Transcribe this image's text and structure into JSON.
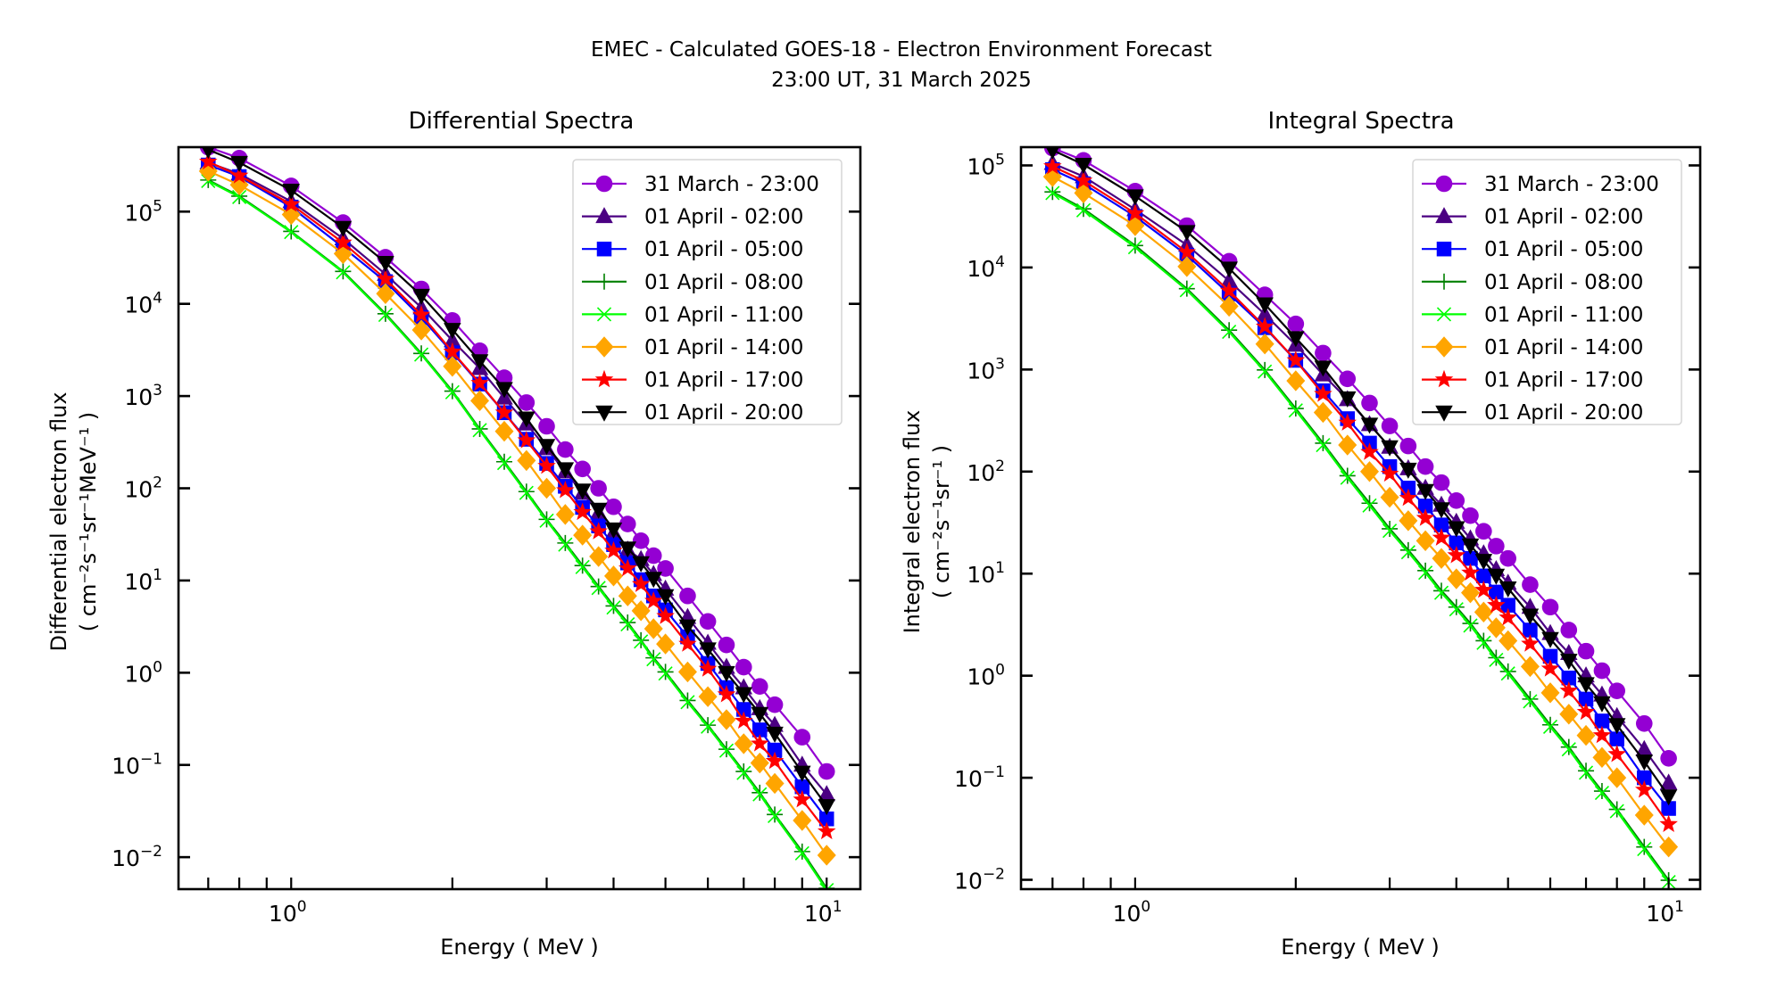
{
  "figure": {
    "title_line1": "EMEC - Calculated GOES-18 - Electron Environment Forecast",
    "title_line2": "23:00 UT, 31 March 2025"
  },
  "chart_data": [
    {
      "type": "line",
      "id": "differential",
      "title": "Differential Spectra",
      "xlabel": "Energy ( MeV )",
      "ylabel_line1": "Differential electron flux",
      "ylabel_line2": "( cm⁻²s⁻¹sr⁻¹MeV⁻¹ )",
      "xscale": "log",
      "yscale": "log",
      "xlim": [
        0.616,
        11.56
      ],
      "ylim": [
        0.0045,
        500000
      ],
      "x_ticks": [
        "10^0",
        "10^1"
      ],
      "y_ticks": [
        "10^-2",
        "10^-1",
        "10^0",
        "10^1",
        "10^2",
        "10^3",
        "10^4",
        "10^5"
      ],
      "legend_position": "top-right",
      "grid": false,
      "x": [
        0.7,
        0.8,
        1.0,
        1.25,
        1.5,
        1.75,
        2.0,
        2.25,
        2.5,
        2.75,
        3.0,
        3.25,
        3.5,
        3.75,
        4.0,
        4.25,
        4.5,
        4.75,
        5.0,
        5.5,
        6.0,
        6.5,
        7.0,
        7.5,
        8.0,
        9.0,
        10.0
      ],
      "series": [
        {
          "name": "31 March - 23:00",
          "color": "#9400d3",
          "marker": "circle",
          "values": [
            500000,
            380000,
            190000,
            76000,
            32000,
            14500,
            6600,
            3100,
            1580,
            850,
            470,
            263,
            162,
            100,
            63,
            41,
            27,
            18.6,
            13.5,
            6.8,
            3.6,
            2.0,
            1.15,
            0.71,
            0.45,
            0.2,
            0.085
          ]
        },
        {
          "name": "01 April - 02:00",
          "color": "#4b0082",
          "marker": "triangle-up",
          "values": [
            340000,
            257000,
            129000,
            51000,
            21000,
            9100,
            4000,
            2000,
            955,
            500,
            270,
            151,
            89,
            54,
            33,
            21.5,
            17,
            11.7,
            8.1,
            4.0,
            2.1,
            1.15,
            0.69,
            0.41,
            0.27,
            0.1,
            0.048
          ]
        },
        {
          "name": "01 April - 05:00",
          "color": "#0000ff",
          "marker": "square",
          "values": [
            320000,
            240000,
            112000,
            41000,
            17400,
            7100,
            2950,
            1350,
            660,
            340,
            186,
            105,
            62,
            39,
            24.5,
            15.5,
            10.2,
            6.8,
            4.8,
            2.45,
            1.26,
            0.69,
            0.4,
            0.24,
            0.145,
            0.058,
            0.026
          ]
        },
        {
          "name": "01 April - 08:00",
          "color": "#008000",
          "marker": "plus",
          "values": [
            220000,
            147000,
            61000,
            22500,
            7800,
            2900,
            1130,
            440,
            194,
            92,
            46,
            25.5,
            14.5,
            8.6,
            5.3,
            3.5,
            2.25,
            1.45,
            1.02,
            0.5,
            0.27,
            0.148,
            0.085,
            0.05,
            0.029,
            0.0115,
            0.0046
          ]
        },
        {
          "name": "01 April - 11:00",
          "color": "#00ff00",
          "marker": "x",
          "values": [
            215000,
            144000,
            60000,
            22000,
            7600,
            2820,
            1100,
            427,
            188,
            89,
            44.5,
            24.5,
            14,
            8.3,
            5.1,
            3.35,
            2.18,
            1.4,
            0.98,
            0.48,
            0.26,
            0.143,
            0.082,
            0.048,
            0.028,
            0.011,
            0.0044
          ]
        },
        {
          "name": "01 April - 14:00",
          "color": "#ffa500",
          "marker": "diamond",
          "values": [
            275000,
            195000,
            93000,
            35000,
            12900,
            5200,
            2100,
            890,
            415,
            200,
            100,
            52,
            31,
            18.2,
            11.2,
            6.8,
            4.7,
            3.0,
            2.05,
            1.02,
            0.55,
            0.31,
            0.17,
            0.105,
            0.063,
            0.025,
            0.0105
          ]
        },
        {
          "name": "01 April - 17:00",
          "color": "#ff0000",
          "marker": "star",
          "values": [
            347000,
            245000,
            120000,
            46000,
            18600,
            7600,
            3020,
            1380,
            660,
            330,
            174,
            95,
            55,
            34,
            21,
            13.5,
            9.1,
            6.0,
            4.1,
            2.05,
            1.1,
            0.58,
            0.3,
            0.17,
            0.11,
            0.042,
            0.019
          ]
        },
        {
          "name": "01 April - 20:00",
          "color": "#000000",
          "marker": "triangle-down",
          "values": [
            470000,
            340000,
            170000,
            67000,
            28000,
            12300,
            5250,
            2400,
            1200,
            575,
            290,
            162,
            95,
            59,
            36,
            22.4,
            15.5,
            10.5,
            6.8,
            3.2,
            1.8,
            1.0,
            0.59,
            0.36,
            0.22,
            0.083,
            0.036
          ]
        }
      ]
    },
    {
      "type": "line",
      "id": "integral",
      "title": "Integral Spectra",
      "xlabel": "Energy ( MeV )",
      "ylabel_line1": "Integral electron flux",
      "ylabel_line2": "( cm⁻²s⁻¹sr⁻¹ )",
      "xscale": "log",
      "yscale": "log",
      "xlim": [
        0.611,
        11.46
      ],
      "ylim": [
        0.0081,
        151000
      ],
      "x_ticks": [
        "10^0",
        "10^1"
      ],
      "y_ticks": [
        "10^-2",
        "10^-1",
        "10^0",
        "10^1",
        "10^2",
        "10^3",
        "10^4",
        "10^5"
      ],
      "legend_position": "top-right",
      "grid": false,
      "x": [
        0.7,
        0.8,
        1.0,
        1.25,
        1.5,
        1.75,
        2.0,
        2.25,
        2.5,
        2.75,
        3.0,
        3.25,
        3.5,
        3.75,
        4.0,
        4.25,
        4.5,
        4.75,
        5.0,
        5.5,
        6.0,
        6.5,
        7.0,
        7.5,
        8.0,
        9.0,
        10.0
      ],
      "series": [
        {
          "name": "31 March - 23:00",
          "color": "#9400d3",
          "marker": "circle",
          "values": [
            148000,
            112000,
            56000,
            25700,
            11500,
            5400,
            2800,
            1450,
            810,
            470,
            280,
            178,
            112,
            78,
            52,
            37,
            26,
            18.6,
            14.1,
            7.8,
            4.7,
            2.8,
            1.74,
            1.12,
            0.71,
            0.34,
            0.155
          ]
        },
        {
          "name": "01 April - 02:00",
          "color": "#4b0082",
          "marker": "triangle-up",
          "values": [
            105000,
            78000,
            37000,
            16600,
            7400,
            3470,
            1740,
            890,
            510,
            290,
            174,
            107,
            69,
            47,
            32,
            22,
            15.7,
            11,
            8.1,
            4.7,
            2.6,
            1.66,
            1.0,
            0.65,
            0.4,
            0.19,
            0.089
          ]
        },
        {
          "name": "01 April - 05:00",
          "color": "#0000ff",
          "marker": "square",
          "values": [
            91000,
            66000,
            31600,
            13200,
            5500,
            2570,
            1230,
            620,
            330,
            190,
            112,
            69,
            46,
            30,
            20,
            14.1,
            9.5,
            6.6,
            4.9,
            2.8,
            1.55,
            0.95,
            0.59,
            0.36,
            0.24,
            0.1,
            0.05
          ]
        },
        {
          "name": "01 April - 08:00",
          "color": "#008000",
          "marker": "plus",
          "values": [
            55000,
            37500,
            16400,
            6200,
            2430,
            990,
            415,
            190,
            91,
            49,
            27.5,
            17,
            10.7,
            6.8,
            4.7,
            3.25,
            2.2,
            1.5,
            1.1,
            0.59,
            0.33,
            0.2,
            0.117,
            0.074,
            0.049,
            0.021,
            0.0099
          ]
        },
        {
          "name": "01 April - 11:00",
          "color": "#00ff00",
          "marker": "x",
          "values": [
            53700,
            36300,
            15800,
            6000,
            2340,
            955,
            398,
            182,
            87,
            46.5,
            26.3,
            16.2,
            10.2,
            6.5,
            4.47,
            3.1,
            2.1,
            1.43,
            1.05,
            0.56,
            0.316,
            0.19,
            0.112,
            0.071,
            0.047,
            0.02,
            0.0095
          ]
        },
        {
          "name": "01 April - 14:00",
          "color": "#ffa500",
          "marker": "diamond",
          "values": [
            77600,
            53700,
            25700,
            10200,
            4170,
            1780,
            776,
            380,
            182,
            100,
            56,
            33,
            21,
            14.1,
            8.9,
            6.5,
            4.2,
            2.95,
            2.2,
            1.23,
            0.68,
            0.42,
            0.26,
            0.158,
            0.1,
            0.043,
            0.021
          ]
        },
        {
          "name": "01 April - 17:00",
          "color": "#ff0000",
          "marker": "star",
          "values": [
            97700,
            70800,
            33900,
            14100,
            5900,
            2630,
            1230,
            575,
            300,
            155,
            95,
            55,
            35,
            22.4,
            15.1,
            10.2,
            6.9,
            4.9,
            3.7,
            2.05,
            1.17,
            0.71,
            0.44,
            0.26,
            0.17,
            0.076,
            0.035
          ]
        },
        {
          "name": "01 April - 20:00",
          "color": "#000000",
          "marker": "triangle-down",
          "values": [
            141000,
            102000,
            50000,
            22400,
            9800,
            4370,
            2040,
            1050,
            525,
            290,
            174,
            105,
            65,
            43,
            28,
            19,
            13.4,
            9.6,
            7.2,
            3.9,
            2.3,
            1.41,
            0.83,
            0.54,
            0.33,
            0.145,
            0.066
          ]
        }
      ]
    }
  ]
}
